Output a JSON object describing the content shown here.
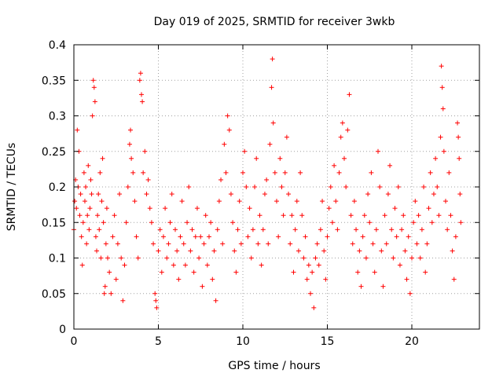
{
  "chart_data": {
    "type": "scatter",
    "title": "Day 019 of 2025, SRMTID for receiver 3wkb",
    "xlabel": "GPS time / hours",
    "ylabel": "SRMTID / TECUs",
    "xlim": [
      0,
      24
    ],
    "ylim": [
      0,
      0.4
    ],
    "x_ticks": [
      0,
      5,
      10,
      15,
      20
    ],
    "x_tick_labels": [
      "0",
      "5",
      "10",
      "15",
      "20"
    ],
    "y_ticks": [
      0,
      0.05,
      0.1,
      0.15,
      0.2,
      0.25,
      0.3,
      0.35,
      0.4
    ],
    "y_tick_labels": [
      "0",
      "0.05",
      "0.1",
      "0.15",
      "0.2",
      "0.25",
      "0.3",
      "0.35",
      "0.4"
    ],
    "grid": true,
    "marker": "+",
    "color": "#ff0000",
    "series": [
      {
        "name": "SRMTID",
        "points": [
          [
            0.0,
            0.14
          ],
          [
            0.05,
            0.18
          ],
          [
            0.1,
            0.21
          ],
          [
            0.15,
            0.17
          ],
          [
            0.2,
            0.28
          ],
          [
            0.25,
            0.2
          ],
          [
            0.3,
            0.25
          ],
          [
            0.35,
            0.16
          ],
          [
            0.4,
            0.19
          ],
          [
            0.45,
            0.13
          ],
          [
            0.5,
            0.09
          ],
          [
            0.55,
            0.15
          ],
          [
            0.6,
            0.22
          ],
          [
            0.65,
            0.18
          ],
          [
            0.7,
            0.2
          ],
          [
            0.75,
            0.12
          ],
          [
            0.8,
            0.16
          ],
          [
            0.85,
            0.23
          ],
          [
            0.9,
            0.14
          ],
          [
            0.95,
            0.17
          ],
          [
            1.0,
            0.21
          ],
          [
            1.05,
            0.19
          ],
          [
            1.1,
            0.3
          ],
          [
            1.15,
            0.35
          ],
          [
            1.2,
            0.34
          ],
          [
            1.25,
            0.32
          ],
          [
            1.3,
            0.13
          ],
          [
            1.35,
            0.11
          ],
          [
            1.4,
            0.16
          ],
          [
            1.45,
            0.19
          ],
          [
            1.5,
            0.14
          ],
          [
            1.55,
            0.22
          ],
          [
            1.6,
            0.1
          ],
          [
            1.65,
            0.18
          ],
          [
            1.7,
            0.24
          ],
          [
            1.75,
            0.15
          ],
          [
            1.8,
            0.05
          ],
          [
            1.85,
            0.06
          ],
          [
            1.9,
            0.12
          ],
          [
            1.95,
            0.17
          ],
          [
            2.0,
            0.1
          ],
          [
            2.1,
            0.08
          ],
          [
            2.2,
            0.05
          ],
          [
            2.3,
            0.13
          ],
          [
            2.4,
            0.16
          ],
          [
            2.5,
            0.07
          ],
          [
            2.6,
            0.12
          ],
          [
            2.7,
            0.19
          ],
          [
            2.8,
            0.1
          ],
          [
            2.9,
            0.04
          ],
          [
            3.0,
            0.09
          ],
          [
            3.1,
            0.15
          ],
          [
            3.2,
            0.2
          ],
          [
            3.3,
            0.26
          ],
          [
            3.35,
            0.28
          ],
          [
            3.4,
            0.24
          ],
          [
            3.5,
            0.22
          ],
          [
            3.6,
            0.18
          ],
          [
            3.7,
            0.13
          ],
          [
            3.8,
            0.1
          ],
          [
            3.9,
            0.35
          ],
          [
            3.95,
            0.36
          ],
          [
            4.0,
            0.33
          ],
          [
            4.05,
            0.32
          ],
          [
            4.1,
            0.22
          ],
          [
            4.2,
            0.25
          ],
          [
            4.3,
            0.19
          ],
          [
            4.4,
            0.21
          ],
          [
            4.5,
            0.17
          ],
          [
            4.6,
            0.15
          ],
          [
            4.7,
            0.12
          ],
          [
            4.8,
            0.05
          ],
          [
            4.85,
            0.04
          ],
          [
            4.9,
            0.03
          ],
          [
            5.0,
            0.11
          ],
          [
            5.1,
            0.14
          ],
          [
            5.2,
            0.08
          ],
          [
            5.3,
            0.13
          ],
          [
            5.4,
            0.17
          ],
          [
            5.5,
            0.1
          ],
          [
            5.6,
            0.12
          ],
          [
            5.7,
            0.15
          ],
          [
            5.8,
            0.19
          ],
          [
            5.9,
            0.09
          ],
          [
            6.0,
            0.14
          ],
          [
            6.1,
            0.11
          ],
          [
            6.2,
            0.07
          ],
          [
            6.3,
            0.13
          ],
          [
            6.4,
            0.18
          ],
          [
            6.5,
            0.12
          ],
          [
            6.6,
            0.09
          ],
          [
            6.7,
            0.15
          ],
          [
            6.8,
            0.2
          ],
          [
            6.9,
            0.11
          ],
          [
            7.0,
            0.14
          ],
          [
            7.1,
            0.08
          ],
          [
            7.2,
            0.13
          ],
          [
            7.3,
            0.17
          ],
          [
            7.4,
            0.1
          ],
          [
            7.5,
            0.13
          ],
          [
            7.6,
            0.06
          ],
          [
            7.7,
            0.12
          ],
          [
            7.8,
            0.16
          ],
          [
            7.9,
            0.09
          ],
          [
            8.0,
            0.13
          ],
          [
            8.1,
            0.15
          ],
          [
            8.2,
            0.07
          ],
          [
            8.3,
            0.11
          ],
          [
            8.4,
            0.04
          ],
          [
            8.5,
            0.14
          ],
          [
            8.6,
            0.18
          ],
          [
            8.7,
            0.21
          ],
          [
            8.8,
            0.12
          ],
          [
            8.9,
            0.26
          ],
          [
            9.0,
            0.22
          ],
          [
            9.1,
            0.3
          ],
          [
            9.2,
            0.28
          ],
          [
            9.3,
            0.19
          ],
          [
            9.4,
            0.15
          ],
          [
            9.5,
            0.11
          ],
          [
            9.6,
            0.08
          ],
          [
            9.7,
            0.14
          ],
          [
            9.8,
            0.18
          ],
          [
            9.9,
            0.12
          ],
          [
            10.0,
            0.22
          ],
          [
            10.1,
            0.25
          ],
          [
            10.2,
            0.2
          ],
          [
            10.3,
            0.13
          ],
          [
            10.4,
            0.17
          ],
          [
            10.5,
            0.1
          ],
          [
            10.6,
            0.14
          ],
          [
            10.7,
            0.2
          ],
          [
            10.8,
            0.24
          ],
          [
            10.9,
            0.12
          ],
          [
            11.0,
            0.16
          ],
          [
            11.1,
            0.09
          ],
          [
            11.2,
            0.14
          ],
          [
            11.3,
            0.19
          ],
          [
            11.4,
            0.21
          ],
          [
            11.5,
            0.12
          ],
          [
            11.6,
            0.26
          ],
          [
            11.7,
            0.34
          ],
          [
            11.75,
            0.38
          ],
          [
            11.8,
            0.29
          ],
          [
            11.9,
            0.22
          ],
          [
            12.0,
            0.18
          ],
          [
            12.1,
            0.13
          ],
          [
            12.2,
            0.24
          ],
          [
            12.3,
            0.2
          ],
          [
            12.4,
            0.16
          ],
          [
            12.5,
            0.22
          ],
          [
            12.6,
            0.27
          ],
          [
            12.7,
            0.19
          ],
          [
            12.8,
            0.12
          ],
          [
            12.9,
            0.16
          ],
          [
            13.0,
            0.08
          ],
          [
            13.1,
            0.14
          ],
          [
            13.2,
            0.18
          ],
          [
            13.3,
            0.11
          ],
          [
            13.4,
            0.22
          ],
          [
            13.5,
            0.16
          ],
          [
            13.6,
            0.1
          ],
          [
            13.7,
            0.13
          ],
          [
            13.8,
            0.07
          ],
          [
            13.9,
            0.09
          ],
          [
            14.0,
            0.05
          ],
          [
            14.1,
            0.08
          ],
          [
            14.2,
            0.03
          ],
          [
            14.3,
            0.1
          ],
          [
            14.4,
            0.12
          ],
          [
            14.5,
            0.09
          ],
          [
            14.6,
            0.14
          ],
          [
            14.7,
            0.18
          ],
          [
            14.8,
            0.11
          ],
          [
            14.9,
            0.07
          ],
          [
            15.0,
            0.13
          ],
          [
            15.1,
            0.17
          ],
          [
            15.2,
            0.2
          ],
          [
            15.3,
            0.15
          ],
          [
            15.4,
            0.23
          ],
          [
            15.5,
            0.18
          ],
          [
            15.6,
            0.14
          ],
          [
            15.7,
            0.22
          ],
          [
            15.8,
            0.27
          ],
          [
            15.9,
            0.29
          ],
          [
            16.0,
            0.24
          ],
          [
            16.1,
            0.2
          ],
          [
            16.2,
            0.28
          ],
          [
            16.3,
            0.33
          ],
          [
            16.4,
            0.16
          ],
          [
            16.5,
            0.12
          ],
          [
            16.6,
            0.18
          ],
          [
            16.7,
            0.14
          ],
          [
            16.8,
            0.08
          ],
          [
            16.9,
            0.11
          ],
          [
            17.0,
            0.06
          ],
          [
            17.1,
            0.13
          ],
          [
            17.2,
            0.16
          ],
          [
            17.3,
            0.1
          ],
          [
            17.4,
            0.19
          ],
          [
            17.5,
            0.15
          ],
          [
            17.6,
            0.22
          ],
          [
            17.7,
            0.12
          ],
          [
            17.8,
            0.08
          ],
          [
            17.9,
            0.14
          ],
          [
            18.0,
            0.25
          ],
          [
            18.1,
            0.2
          ],
          [
            18.2,
            0.11
          ],
          [
            18.3,
            0.06
          ],
          [
            18.4,
            0.16
          ],
          [
            18.5,
            0.12
          ],
          [
            18.6,
            0.19
          ],
          [
            18.7,
            0.23
          ],
          [
            18.8,
            0.14
          ],
          [
            18.9,
            0.1
          ],
          [
            19.0,
            0.17
          ],
          [
            19.1,
            0.13
          ],
          [
            19.2,
            0.2
          ],
          [
            19.3,
            0.09
          ],
          [
            19.4,
            0.14
          ],
          [
            19.5,
            0.16
          ],
          [
            19.6,
            0.11
          ],
          [
            19.7,
            0.07
          ],
          [
            19.8,
            0.13
          ],
          [
            19.9,
            0.05
          ],
          [
            20.0,
            0.1
          ],
          [
            20.1,
            0.15
          ],
          [
            20.2,
            0.18
          ],
          [
            20.3,
            0.12
          ],
          [
            20.4,
            0.16
          ],
          [
            20.5,
            0.1
          ],
          [
            20.6,
            0.14
          ],
          [
            20.7,
            0.2
          ],
          [
            20.8,
            0.08
          ],
          [
            20.9,
            0.12
          ],
          [
            21.0,
            0.17
          ],
          [
            21.1,
            0.22
          ],
          [
            21.2,
            0.15
          ],
          [
            21.3,
            0.19
          ],
          [
            21.4,
            0.24
          ],
          [
            21.5,
            0.2
          ],
          [
            21.6,
            0.16
          ],
          [
            21.7,
            0.27
          ],
          [
            21.75,
            0.37
          ],
          [
            21.8,
            0.34
          ],
          [
            21.85,
            0.31
          ],
          [
            21.9,
            0.25
          ],
          [
            22.0,
            0.18
          ],
          [
            22.1,
            0.14
          ],
          [
            22.2,
            0.22
          ],
          [
            22.3,
            0.16
          ],
          [
            22.4,
            0.11
          ],
          [
            22.5,
            0.07
          ],
          [
            22.6,
            0.13
          ],
          [
            22.7,
            0.29
          ],
          [
            22.75,
            0.27
          ],
          [
            22.8,
            0.24
          ],
          [
            22.85,
            0.19
          ],
          [
            22.9,
            0.15
          ]
        ]
      }
    ]
  }
}
